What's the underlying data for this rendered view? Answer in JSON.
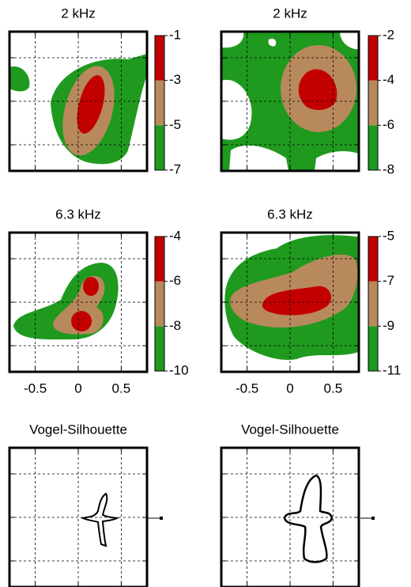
{
  "chart_data": [
    {
      "type": "contour",
      "title": "2 kHz",
      "xlim": [
        -0.8,
        0.8
      ],
      "xticks": [
        -0.5,
        0,
        0.5
      ],
      "xticklabels": false,
      "clim": [
        -7,
        -1
      ],
      "cticks": [
        -7,
        -5,
        -3,
        -1
      ],
      "colors": [
        "#1f9a1f",
        "#b8895c",
        "#c30000"
      ]
    },
    {
      "type": "contour",
      "title": "2 kHz",
      "xlim": [
        -0.8,
        0.8
      ],
      "xticks": [
        -0.5,
        0,
        0.5
      ],
      "xticklabels": false,
      "clim": [
        -8,
        -2
      ],
      "cticks": [
        -8,
        -6,
        -4,
        -2
      ],
      "colors": [
        "#1f9a1f",
        "#b8895c",
        "#c30000"
      ]
    },
    {
      "type": "contour",
      "title": "6.3 kHz",
      "xlim": [
        -0.8,
        0.8
      ],
      "xticks": [
        -0.5,
        0,
        0.5
      ],
      "xticklabels": true,
      "clim": [
        -10,
        -4
      ],
      "cticks": [
        -10,
        -8,
        -6,
        -4
      ],
      "colors": [
        "#1f9a1f",
        "#b8895c",
        "#c30000"
      ]
    },
    {
      "type": "contour",
      "title": "6.3 kHz",
      "xlim": [
        -0.8,
        0.8
      ],
      "xticks": [
        -0.5,
        0,
        0.5
      ],
      "xticklabels": true,
      "clim": [
        -11,
        -5
      ],
      "cticks": [
        -11,
        -9,
        -7,
        -5
      ],
      "colors": [
        "#1f9a1f",
        "#b8895c",
        "#c30000"
      ]
    },
    {
      "type": "silhouette",
      "title": "Vogel-Silhouette",
      "xlim": [
        -0.8,
        0.8
      ],
      "xticks": [
        -0.5,
        0,
        0.5
      ],
      "xticklabels": false
    },
    {
      "type": "silhouette",
      "title": "Vogel-Silhouette",
      "xlim": [
        -0.8,
        0.8
      ],
      "xticks": [
        -0.5,
        0,
        0.5
      ],
      "xticklabels": false
    }
  ]
}
